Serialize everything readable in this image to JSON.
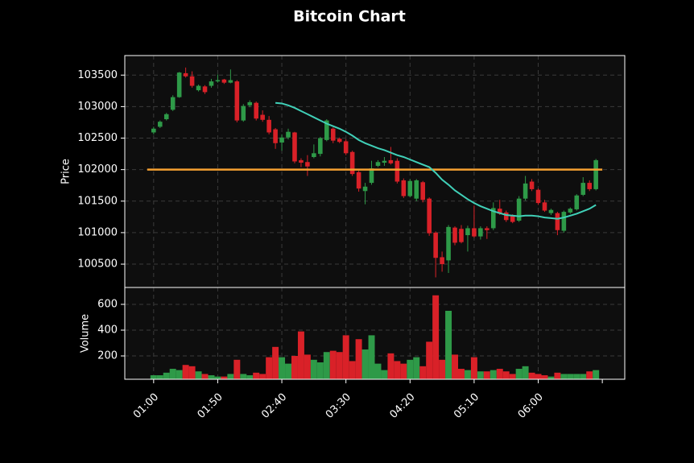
{
  "chart_data": {
    "type": "candlestick",
    "title": "Bitcoin Chart",
    "ylabel": "Price",
    "grid": true,
    "up_color": "#2e9a48",
    "down_color": "#d92128",
    "categories": [
      "01:00",
      null,
      null,
      null,
      null,
      null,
      null,
      null,
      null,
      null,
      "01:50",
      null,
      null,
      null,
      null,
      null,
      null,
      null,
      null,
      null,
      "02:40",
      null,
      null,
      null,
      null,
      null,
      null,
      null,
      null,
      null,
      "03:30",
      null,
      null,
      null,
      null,
      null,
      null,
      null,
      null,
      null,
      "04:20",
      null,
      null,
      null,
      null,
      null,
      null,
      null,
      null,
      null,
      "05:10",
      null,
      null,
      null,
      null,
      null,
      null,
      null,
      null,
      null,
      "06:00",
      null,
      null,
      null,
      null,
      null,
      null,
      null,
      null,
      null
    ],
    "open": [
      102590,
      102680,
      102800,
      102950,
      103150,
      103530,
      103480,
      103260,
      103320,
      103330,
      103400,
      103430,
      103380,
      103400,
      102780,
      103020,
      103060,
      102870,
      102790,
      102640,
      102430,
      102510,
      102590,
      102150,
      102120,
      102200,
      102250,
      102470,
      102650,
      102490,
      102450,
      102280,
      101960,
      101660,
      101790,
      102060,
      102110,
      102150,
      102140,
      101830,
      101580,
      101540,
      101800,
      101540,
      101000,
      100610,
      100560,
      101080,
      101060,
      100960,
      101070,
      100940,
      101070,
      101070,
      101380,
      101320,
      101260,
      101190,
      101540,
      101810,
      101680,
      101480,
      101310,
      101310,
      101030,
      101320,
      101370,
      101600,
      101790,
      101690
    ],
    "high": [
      102680,
      102780,
      102900,
      103180,
      103550,
      103620,
      103560,
      103350,
      103340,
      103440,
      103510,
      103440,
      103590,
      103420,
      103040,
      103100,
      103080,
      102940,
      102850,
      102660,
      102560,
      102650,
      102600,
      102180,
      102230,
      102400,
      102520,
      102800,
      102670,
      102510,
      102480,
      102300,
      101980,
      101790,
      102140,
      102150,
      102200,
      102360,
      102180,
      101860,
      101850,
      101850,
      101820,
      101560,
      101020,
      100700,
      101120,
      101100,
      101120,
      101110,
      101430,
      101100,
      101100,
      101480,
      101520,
      101350,
      101290,
      101580,
      101900,
      101850,
      101700,
      101520,
      101380,
      101330,
      101350,
      101400,
      101610,
      101880,
      101830,
      102170
    ],
    "low": [
      102560,
      102660,
      102780,
      102930,
      103140,
      103460,
      103300,
      103240,
      103200,
      103300,
      103380,
      103360,
      103370,
      102750,
      102760,
      102990,
      102780,
      102760,
      102560,
      102330,
      102300,
      102480,
      102100,
      102040,
      101900,
      102180,
      102210,
      102450,
      102420,
      102420,
      102230,
      101900,
      101650,
      101450,
      101760,
      102040,
      102060,
      102080,
      101780,
      101550,
      101560,
      101500,
      101480,
      100950,
      100290,
      100380,
      100360,
      100800,
      100830,
      100700,
      100920,
      100890,
      100900,
      101040,
      101280,
      101170,
      101150,
      101170,
      101510,
      101660,
      101440,
      101330,
      101280,
      100960,
      101000,
      101300,
      101350,
      101580,
      101660,
      101670
    ],
    "close": [
      102650,
      102760,
      102880,
      103150,
      103540,
      103480,
      103330,
      103330,
      103230,
      103400,
      103420,
      103380,
      103420,
      102780,
      103010,
      103070,
      102810,
      102790,
      102590,
      102420,
      102510,
      102600,
      102130,
      102110,
      102050,
      102260,
      102500,
      102780,
      102460,
      102440,
      102260,
      101930,
      101700,
      101730,
      102020,
      102120,
      102140,
      102100,
      101810,
      101580,
      101820,
      101830,
      101520,
      100990,
      100600,
      100500,
      101090,
      100840,
      100850,
      101070,
      100940,
      101070,
      101040,
      101390,
      101300,
      101200,
      101170,
      101540,
      101780,
      101690,
      101470,
      101350,
      101360,
      101040,
      101330,
      101380,
      101590,
      101790,
      101690,
      102150
    ],
    "ylim": [
      100130,
      103810
    ],
    "yticks": [
      100500,
      101000,
      101500,
      102000,
      102500,
      103000,
      103500
    ],
    "moving_average": {
      "color": "#40d0b8",
      "values": [
        null,
        null,
        null,
        null,
        null,
        null,
        null,
        null,
        null,
        null,
        null,
        null,
        null,
        null,
        null,
        null,
        null,
        null,
        null,
        103060,
        103050,
        103020,
        102980,
        102930,
        102880,
        102830,
        102780,
        102730,
        102690,
        102650,
        102600,
        102540,
        102470,
        102420,
        102380,
        102340,
        102310,
        102270,
        102230,
        102200,
        102160,
        102120,
        102080,
        102040,
        101950,
        101840,
        101760,
        101670,
        101600,
        101530,
        101470,
        101420,
        101380,
        101340,
        101310,
        101280,
        101270,
        101260,
        101270,
        101270,
        101260,
        101240,
        101230,
        101220,
        101240,
        101270,
        101300,
        101340,
        101380,
        101440
      ]
    },
    "hline": {
      "value": 102000,
      "color": "#f5a031"
    },
    "volume": {
      "ylabel": "Volume",
      "ylim": [
        19,
        731
      ],
      "yticks": [
        200,
        400,
        600
      ],
      "values": [
        50,
        50,
        70,
        100,
        90,
        130,
        120,
        80,
        60,
        50,
        40,
        40,
        60,
        170,
        60,
        50,
        70,
        60,
        190,
        270,
        190,
        140,
        200,
        390,
        210,
        170,
        150,
        230,
        240,
        230,
        360,
        160,
        330,
        250,
        360,
        140,
        90,
        220,
        160,
        140,
        170,
        190,
        120,
        310,
        670,
        170,
        550,
        210,
        100,
        90,
        190,
        80,
        80,
        90,
        100,
        80,
        60,
        100,
        120,
        70,
        60,
        50,
        40,
        70,
        60,
        60,
        60,
        60,
        80,
        90
      ]
    }
  }
}
